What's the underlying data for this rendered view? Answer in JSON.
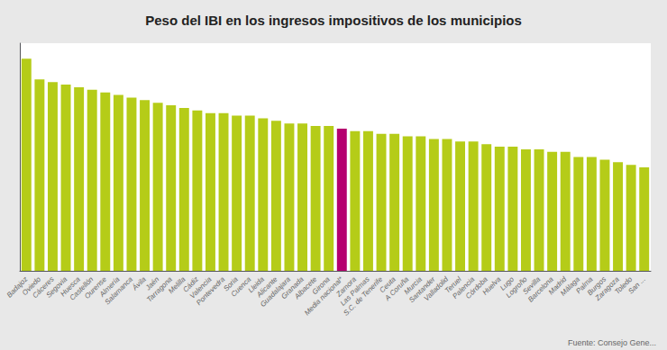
{
  "chart_data": {
    "type": "bar",
    "title": "Peso del IBI en los ingresos impositivos de los municipios",
    "source": "Fuente: Consejo Gene...",
    "categories": [
      "Badajoz",
      "Oviedo",
      "Cáceres",
      "Segovia",
      "Huesca",
      "Castellón",
      "Ourense",
      "Almería",
      "Salamanca",
      "Ávila",
      "Jaén",
      "Tarragona",
      "Melilla",
      "Cádiz",
      "Valencia",
      "Pontevedra",
      "Soria",
      "Cuenca",
      "Lleida",
      "Alicante",
      "Guadalajara",
      "Granada",
      "Albacete",
      "Girona",
      "Media nacional*",
      "Zamora",
      "Las Palmas",
      "S.C. de Tenerife",
      "Ceuta",
      "A Coruña",
      "Murcia",
      "Santander",
      "Valladolid",
      "Teruel",
      "Palencia",
      "Córdoba",
      "Huelva",
      "Lugo",
      "Logroño",
      "Sevilla",
      "Barcelona",
      "Madrid",
      "Málaga",
      "Palma",
      "Burgos",
      "Zaragoza",
      "Toledo",
      "San ..."
    ],
    "values": [
      82,
      74,
      73,
      72,
      71,
      70,
      69,
      68,
      67,
      66,
      65,
      64,
      63,
      62,
      61,
      61,
      60,
      60,
      59,
      58,
      57,
      57,
      56,
      56,
      55,
      54,
      54,
      53,
      53,
      52,
      52,
      51,
      51,
      50,
      50,
      49,
      48,
      48,
      47,
      47,
      46,
      46,
      44,
      44,
      43,
      42,
      41,
      40
    ],
    "colors": [
      "#b5cc18",
      "#b5cc18",
      "#b5cc18",
      "#b5cc18",
      "#b5cc18",
      "#b5cc18",
      "#b5cc18",
      "#b5cc18",
      "#b5cc18",
      "#b5cc18",
      "#b5cc18",
      "#b5cc18",
      "#b5cc18",
      "#b5cc18",
      "#b5cc18",
      "#b5cc18",
      "#b5cc18",
      "#b5cc18",
      "#b5cc18",
      "#b5cc18",
      "#b5cc18",
      "#b5cc18",
      "#b5cc18",
      "#b5cc18",
      "#b5006e",
      "#b5cc18",
      "#b5cc18",
      "#b5cc18",
      "#b5cc18",
      "#b5cc18",
      "#b5cc18",
      "#b5cc18",
      "#b5cc18",
      "#b5cc18",
      "#b5cc18",
      "#b5cc18",
      "#b5cc18",
      "#b5cc18",
      "#b5cc18",
      "#b5cc18",
      "#b5cc18",
      "#b5cc18",
      "#b5cc18",
      "#b5cc18",
      "#b5cc18",
      "#b5cc18",
      "#b5cc18",
      "#b5cc18"
    ],
    "ylim": [
      0,
      88
    ],
    "grid": false,
    "tick_labels": "x"
  }
}
